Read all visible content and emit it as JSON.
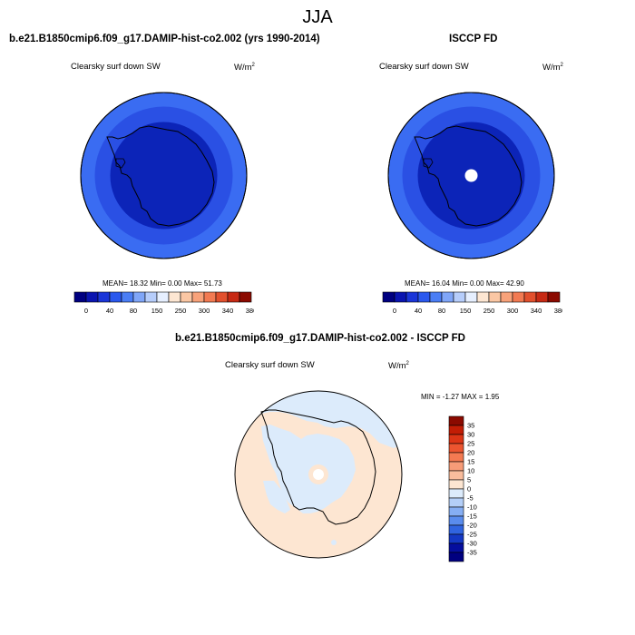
{
  "season": "JJA",
  "left_panel": {
    "title": "b.e21.B1850cmip6.f09_g17.DAMIP-hist-co2.002 (yrs 1990-2014)",
    "variable": "Clearsky surf down SW",
    "units_base": "W/m",
    "units_exp": "2",
    "stats": "MEAN=  18.32  Min=   0.00  Max=  51.73"
  },
  "right_panel": {
    "title": "ISCCP FD",
    "variable": "Clearsky surf down SW",
    "units_base": "W/m",
    "units_exp": "2",
    "stats": "MEAN=  16.04  Min=   0.00  Max=  42.90"
  },
  "diff_panel": {
    "title": "b.e21.B1850cmip6.f09_g17.DAMIP-hist-co2.002 - ISCCP FD",
    "variable": "Clearsky surf down SW",
    "units_base": "W/m",
    "units_exp": "2",
    "stats": "MIN =  -1.27 MAX =   1.95"
  },
  "top_colorbar": {
    "labels": [
      "0",
      "40",
      "80",
      "150",
      "250",
      "300",
      "340",
      "380"
    ],
    "colors": [
      "#000080",
      "#0a14b0",
      "#1a35d8",
      "#2a58ee",
      "#4b7ef5",
      "#80a6f8",
      "#b6cdfb",
      "#e6efff",
      "#fde6d2",
      "#fbc7a4",
      "#f8a27a",
      "#f27a52",
      "#e2502d",
      "#c72a14",
      "#8b0a00"
    ]
  },
  "diff_colorbar": {
    "labels": [
      "35",
      "30",
      "25",
      "20",
      "15",
      "10",
      "5",
      "0",
      "-5",
      "-10",
      "-15",
      "-20",
      "-25",
      "-30",
      "-35"
    ],
    "colors": [
      "#8b0a00",
      "#c21d05",
      "#dc3516",
      "#ec5530",
      "#f47a52",
      "#f79c78",
      "#f9bc9c",
      "#fde6d2",
      "#dcebfb",
      "#b4cff8",
      "#86aef3",
      "#5a8ced",
      "#3064e0",
      "#1438c4",
      "#050e9e",
      "#000080"
    ]
  },
  "map_colors": {
    "outer_ring": "#3a6cf2",
    "middle_ring": "#2a50e4",
    "inner": "#0c24b8",
    "diff_background": "#fde6d2",
    "diff_negative": "#dcebfb"
  }
}
